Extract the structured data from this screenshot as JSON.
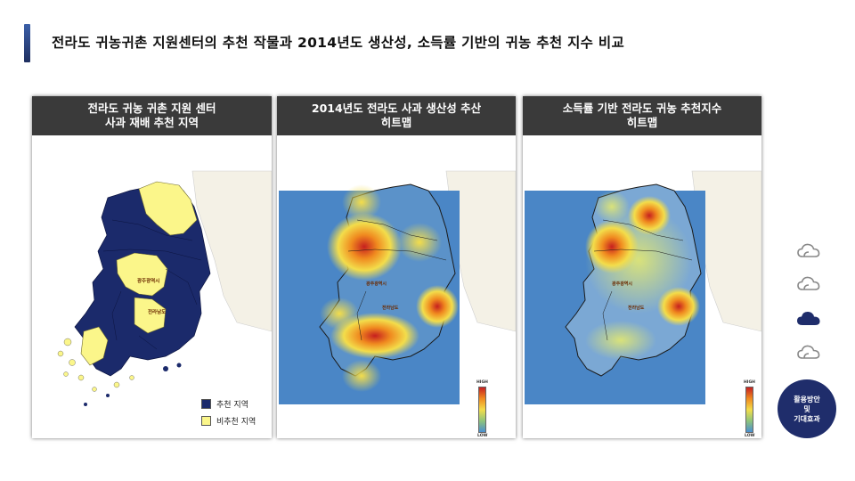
{
  "page": {
    "title": "전라도 귀농귀촌 지원센터의 추천 작물과 2014년도 생산성, 소득률 기반의 귀농 추천 지수 비교"
  },
  "panels": [
    {
      "title_line1": "전라도 귀농 귀촌 지원 센터",
      "title_line2": "사과 재배 추천 지역"
    },
    {
      "title_line1": "2014년도 전라도 사과 생산성 추산",
      "title_line2": "히트맵"
    },
    {
      "title_line1": "소득률 기반 전라도 귀농 추천지수",
      "title_line2": "히트맵"
    }
  ],
  "legend": [
    {
      "label": "추천 지역",
      "color": "#1b2a6b"
    },
    {
      "label": "비추천 지역",
      "color": "#fbf68a"
    }
  ],
  "heat_scale": {
    "high": "HIGH",
    "low": "LOW"
  },
  "map_labels": [
    "광주광역시",
    "전라남도"
  ],
  "side_nav": {
    "icons": [
      "cloud-outline-icon",
      "cloud-outline-icon",
      "cloud-filled-icon",
      "cloud-outline-icon"
    ],
    "active_index": 2,
    "button_line1": "활용방안",
    "button_line2": "및",
    "button_line3": "기대효과"
  },
  "colors": {
    "navy": "#1b2a6b",
    "yellow": "#fbf68a",
    "sea": "#4a86c6",
    "header": "#3a3a3a"
  }
}
